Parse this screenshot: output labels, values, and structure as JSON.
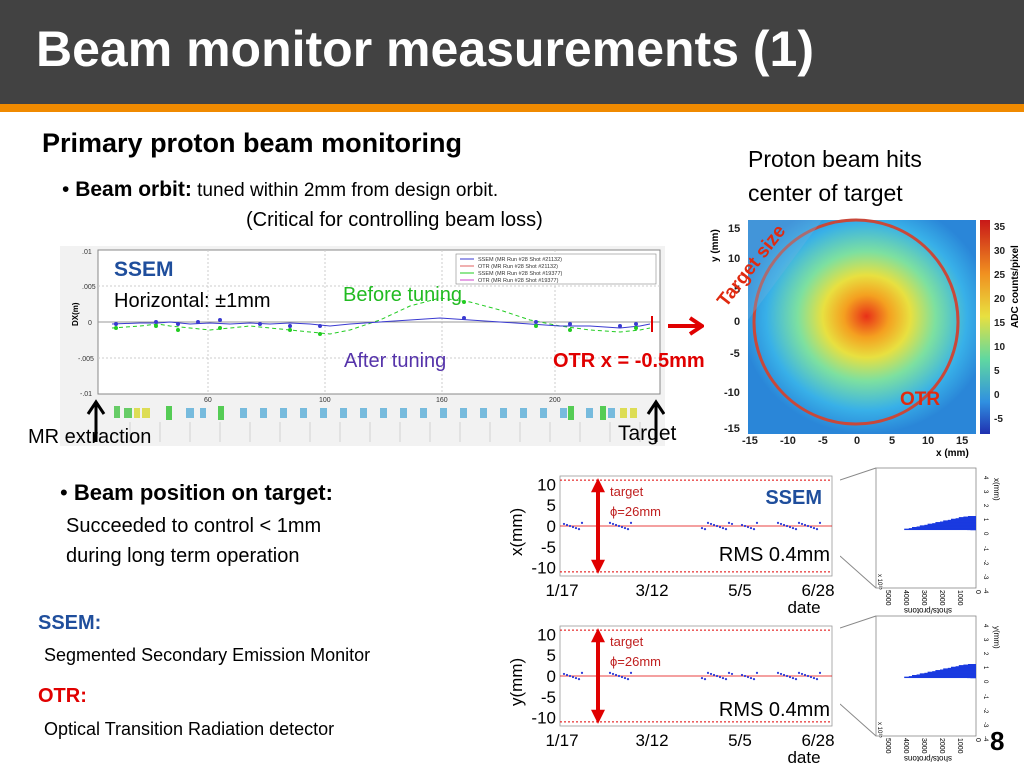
{
  "slide": {
    "title": "Beam monitor measurements (1)",
    "subtitle": "Primary proton beam monitoring",
    "page_number": "8",
    "bullet1": {
      "bold": "Beam orbit:",
      "text": " tuned within 2mm from design orbit.",
      "line2": "(Critical for controlling beam loss)"
    },
    "bullet2": {
      "bold": "Beam position on target:",
      "line1": "Succeeded to control < 1mm",
      "line2": "during long term operation"
    },
    "ssem_def": {
      "label": "SSEM:",
      "text": "Segmented Secondary Emission Monitor"
    },
    "otr_def": {
      "label": "OTR:",
      "text": "Optical Transition Radiation detector"
    },
    "hits_note": {
      "line1": "Proton beam hits",
      "line2": "center of target"
    }
  },
  "orbit_plot": {
    "ssem_label": "SSEM",
    "horizontal_label": "Horizontal: ±1mm",
    "before_label": "Before tuning",
    "after_label": "After tuning",
    "otr_x_label": "OTR x = -0.5mm",
    "mr_label": "MR extraction",
    "target_label": "Target",
    "ylabel": "DX(m)",
    "yticks": [
      ".01",
      ".005",
      "0",
      "-.005",
      "-.01"
    ],
    "xticks": [
      "60",
      "100",
      "160",
      "200"
    ],
    "legend": [
      "SSEM (MR Run #28 Shot #21132)",
      "OTR (MR Run #28 Shot #21132)",
      "SSEM (MR Run #28 Shot #19377)",
      "OTR (MR Run #28 Shot #19377)"
    ],
    "colors": {
      "after": "#3a3ad0",
      "before": "#22cc22",
      "red": "#e00000"
    }
  },
  "otr_image": {
    "target_size_label": "Target size",
    "otr_label": "OTR",
    "xlabel": "x (mm)",
    "ylabel": "y (mm)",
    "zlabel": "ADC counts/pixel",
    "xticks": [
      "-15",
      "-10",
      "-5",
      "0",
      "5",
      "10",
      "15"
    ],
    "yticks": [
      "15",
      "10",
      "5",
      "0",
      "-5",
      "-10",
      "-15"
    ],
    "zticks": [
      "35",
      "30",
      "25",
      "20",
      "15",
      "10",
      "5",
      "0",
      "-5"
    ]
  },
  "chart_data": [
    {
      "type": "scatter",
      "title": "",
      "ylabel": "x(mm)",
      "xlabel": "date",
      "x_ticks": [
        "1/17",
        "3/12",
        "5/5",
        "6/28"
      ],
      "yticks": [
        "10",
        "5",
        "0",
        "-5",
        "-10"
      ],
      "ylim": [
        -12,
        12
      ],
      "annotations": [
        "target",
        "ϕ=26mm",
        "SSEM",
        "RMS 0.4mm"
      ],
      "side_hist": {
        "xlabel": "shots/protons",
        "ylabel": "x(mm)",
        "ticks": [
          "5000",
          "4000",
          "3000",
          "2000",
          "1000",
          "0"
        ],
        "exp": "x 10¹⁵"
      }
    },
    {
      "type": "scatter",
      "title": "",
      "ylabel": "y(mm)",
      "xlabel": "date",
      "x_ticks": [
        "1/17",
        "3/12",
        "5/5",
        "6/28"
      ],
      "yticks": [
        "10",
        "5",
        "0",
        "-5",
        "-10"
      ],
      "ylim": [
        -12,
        12
      ],
      "annotations": [
        "target",
        "ϕ=26mm",
        "RMS 0.4mm"
      ],
      "side_hist": {
        "xlabel": "shots/protons",
        "ylabel": "y(mm)",
        "ticks": [
          "5000",
          "4000",
          "3000",
          "2000",
          "1000",
          "0"
        ],
        "exp": "x 10¹⁵"
      }
    }
  ]
}
